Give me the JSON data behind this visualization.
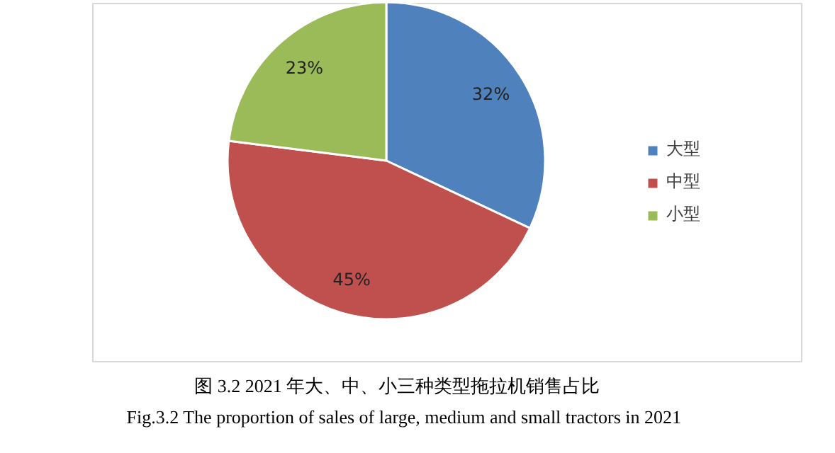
{
  "chart_data": {
    "type": "pie",
    "title": "图 3.2    2021 年大、中、小三种类型拖拉机销售占比",
    "subtitle": "Fig.3.2 The proportion of sales of large, medium and small tractors in 2021",
    "categories": [
      "大型",
      "中型",
      "小型"
    ],
    "values": [
      32,
      45,
      23
    ],
    "value_labels": [
      "32%",
      "45%",
      "23%"
    ],
    "colors": [
      "#4f81bd",
      "#c0504d",
      "#9bbb59"
    ],
    "legend": "right"
  }
}
